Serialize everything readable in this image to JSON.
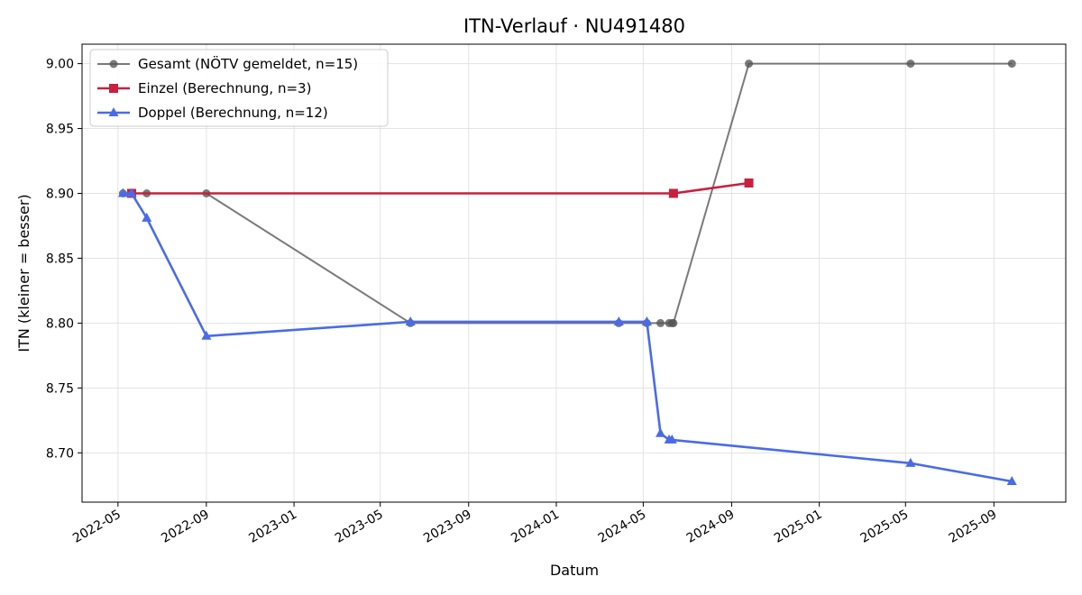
{
  "chart_data": {
    "type": "line",
    "title": "ITN-Verlauf · NU491480",
    "xlabel": "Datum",
    "ylabel": "ITN  (kleiner = besser)",
    "x_ticks": [
      "2022-05",
      "2022-09",
      "2023-01",
      "2023-05",
      "2023-09",
      "2024-01",
      "2024-05",
      "2024-09",
      "2025-01",
      "2025-05",
      "2025-09"
    ],
    "y_ticks": [
      "8.70",
      "8.75",
      "8.80",
      "8.85",
      "8.90",
      "8.95",
      "9.00"
    ],
    "xlim": [
      "2022-03-12",
      "2025-12-10"
    ],
    "ylim": [
      8.662,
      9.015
    ],
    "grid": true,
    "legend_position": "top-left",
    "series": [
      {
        "name": "Gesamt (NÖTV gemeldet, n=15)",
        "color": "#555555",
        "marker": "circle",
        "points": [
          [
            "2022-05-08",
            8.9
          ],
          [
            "2022-05-20",
            8.9
          ],
          [
            "2022-06-10",
            8.9
          ],
          [
            "2022-09-01",
            8.9
          ],
          [
            "2023-06-12",
            8.8
          ],
          [
            "2024-03-28",
            8.8
          ],
          [
            "2024-05-06",
            8.8
          ],
          [
            "2024-05-25",
            8.8
          ],
          [
            "2024-06-06",
            8.8
          ],
          [
            "2024-06-10",
            8.8
          ],
          [
            "2024-06-12",
            8.8
          ],
          [
            "2024-09-25",
            9.0
          ],
          [
            "2025-05-08",
            9.0
          ],
          [
            "2025-09-26",
            9.0
          ]
        ]
      },
      {
        "name": "Einzel (Berechnung, n=3)",
        "color": "#c8203f",
        "marker": "square",
        "points": [
          [
            "2022-05-20",
            8.9
          ],
          [
            "2024-06-12",
            8.9
          ],
          [
            "2024-09-25",
            8.908
          ]
        ]
      },
      {
        "name": "Doppel (Berechnung, n=12)",
        "color": "#4a6be8",
        "marker": "triangle",
        "points": [
          [
            "2022-05-08",
            8.9
          ],
          [
            "2022-05-20",
            8.9
          ],
          [
            "2022-06-10",
            8.881
          ],
          [
            "2022-09-01",
            8.79
          ],
          [
            "2023-06-12",
            8.801
          ],
          [
            "2024-03-28",
            8.801
          ],
          [
            "2024-05-06",
            8.801
          ],
          [
            "2024-05-25",
            8.715
          ],
          [
            "2024-06-06",
            8.71
          ],
          [
            "2024-06-10",
            8.71
          ],
          [
            "2025-05-08",
            8.692
          ],
          [
            "2025-09-26",
            8.678
          ]
        ]
      }
    ]
  }
}
